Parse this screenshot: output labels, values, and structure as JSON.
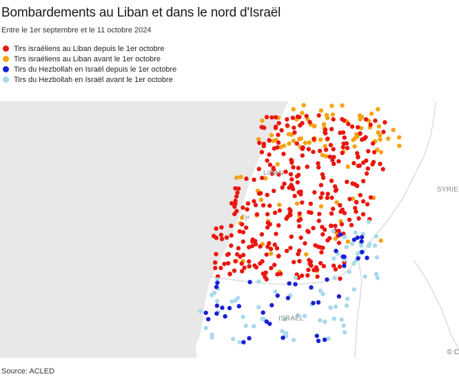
{
  "title": "Bombardements au Liban et dans le nord d'Israël",
  "subtitle": "Entre le 1er septembre et le 11 octobre 2024",
  "legend": [
    {
      "label": "Tirs israéliens au Liban depuis le 1er octobre",
      "color": "#e8170f"
    },
    {
      "label": "Tirs israéliens au Liban avant le 1er octobre",
      "color": "#f5a311"
    },
    {
      "label": "Tirs du Hezbollah en Israël depuis le 1er octobre",
      "color": "#1a1fd6"
    },
    {
      "label": "Tirs du Hezbollah en Israël avant le 1er octobre",
      "color": "#a9d9ec"
    }
  ],
  "map": {
    "labels": {
      "lebanon": "LIBAN",
      "syria": "SYRIE",
      "israel": "ISRAËL",
      "tyre": "Tyr"
    },
    "colors": {
      "sea": "#e8e8e8",
      "land": "#ffffff",
      "border": "#d4d4d4"
    },
    "attribution": "© C"
  },
  "source": "Source: ACLED"
}
